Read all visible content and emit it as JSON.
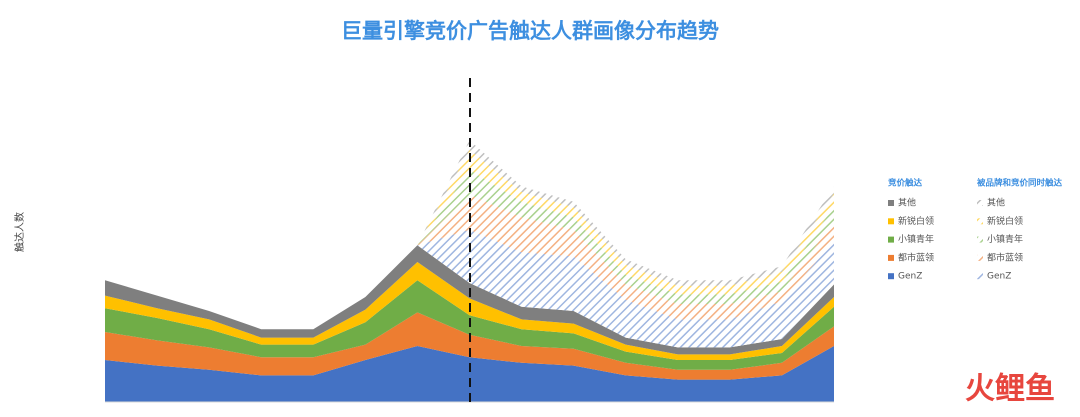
{
  "chart_data": {
    "type": "stacked-area",
    "title": "巨量引擎竞价广告触达人群画像分布趋势",
    "y_label": "触达人数",
    "categories": [
      null,
      null,
      null,
      null,
      null,
      null,
      null,
      null,
      null,
      null,
      null,
      null,
      null,
      null,
      null
    ],
    "ylim": [
      0,
      100
    ],
    "series_groups": [
      {
        "name": "竞价触达",
        "pattern": "solid",
        "series": [
          {
            "name": "GenZ",
            "color": "#4472c4",
            "values": [
              15,
              13,
              11.5,
              9.5,
              9.5,
              15,
              20,
              16,
              14,
              13,
              9.5,
              8,
              8,
              9.5,
              20
            ]
          },
          {
            "name": "都市蓝领",
            "color": "#ed7d31",
            "values": [
              10,
              9,
              8,
              6.5,
              6.5,
              5.5,
              12,
              8,
              6,
              6,
              4.5,
              3.5,
              3.5,
              4.5,
              7
            ]
          },
          {
            "name": "小镇青年",
            "color": "#70ad47",
            "values": [
              8.5,
              8,
              6.5,
              4.5,
              4.5,
              8,
              11.5,
              7,
              6,
              5.5,
              4,
              3.5,
              3.5,
              3.5,
              7
            ]
          },
          {
            "name": "新锐白领",
            "color": "#ffc000",
            "values": [
              4.5,
              3.5,
              3.5,
              2.5,
              2.5,
              4.5,
              6.5,
              6,
              3.5,
              3.5,
              2.5,
              2,
              2,
              2.5,
              3.5
            ]
          },
          {
            "name": "其他",
            "color": "#7f7f7f",
            "values": [
              5.5,
              4.5,
              3,
              3,
              3,
              4.5,
              6,
              5.5,
              4.5,
              4.5,
              2.5,
              2.5,
              2.5,
              2.5,
              4.5
            ]
          }
        ]
      },
      {
        "name": "被品牌和竞价同时触达",
        "pattern": "hatch",
        "series": [
          {
            "name": "GenZ",
            "color": "#9fb6e0",
            "values": [
              null,
              null,
              null,
              null,
              null,
              null,
              0,
              19,
              19.5,
              19.5,
              13.5,
              10,
              10,
              13.5,
              15.5
            ]
          },
          {
            "name": "都市蓝领",
            "color": "#f4b183",
            "values": [
              null,
              null,
              null,
              null,
              null,
              null,
              0,
              12.5,
              12.5,
              9.5,
              5.5,
              5.5,
              5.5,
              3.5,
              7
            ]
          },
          {
            "name": "小镇青年",
            "color": "#a9d18e",
            "values": [
              null,
              null,
              null,
              null,
              null,
              null,
              0,
              9,
              5.5,
              4.5,
              3.5,
              3.5,
              3.5,
              3.5,
              5.5
            ]
          },
          {
            "name": "新锐白领",
            "color": "#ffd966",
            "values": [
              null,
              null,
              null,
              null,
              null,
              null,
              0,
              7,
              3.5,
              3.5,
              3.5,
              3,
              3,
              3.5,
              4.5
            ]
          },
          {
            "name": "其他",
            "color": "#bfbfbf",
            "values": [
              null,
              null,
              null,
              null,
              null,
              null,
              0,
              3.5,
              2,
              2,
              2,
              2,
              2,
              2,
              2.5
            ]
          }
        ]
      }
    ],
    "logo": "火鲤鱼"
  }
}
